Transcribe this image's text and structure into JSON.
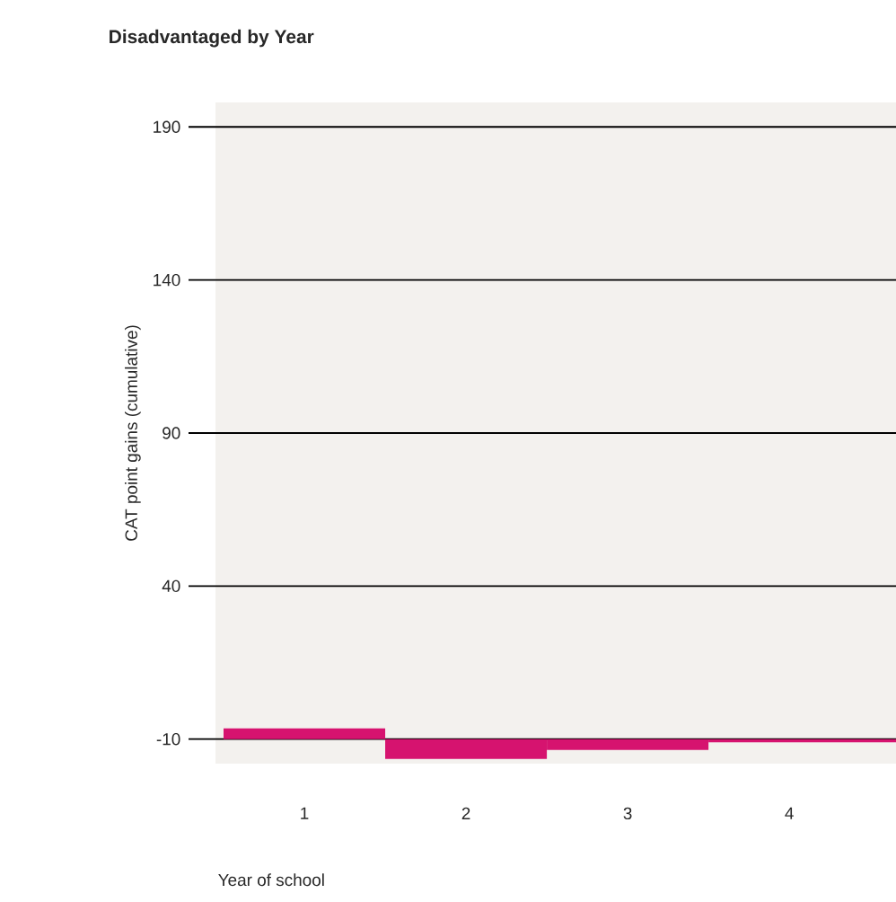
{
  "chart_data": {
    "type": "bar",
    "title": "Disadvantaged by Year",
    "xlabel": "Year of school",
    "ylabel": "CAT point gains (cumulative)",
    "categories": [
      "1",
      "2",
      "3",
      "4"
    ],
    "base": [
      -10,
      -10,
      -10,
      -10
    ],
    "values": [
      3.5,
      -6.5,
      -3.5,
      -1
    ],
    "color": "#d6136f",
    "ylim": [
      -18,
      198
    ],
    "yticks": [
      190,
      140,
      90,
      40,
      -10
    ],
    "grid": "y"
  }
}
